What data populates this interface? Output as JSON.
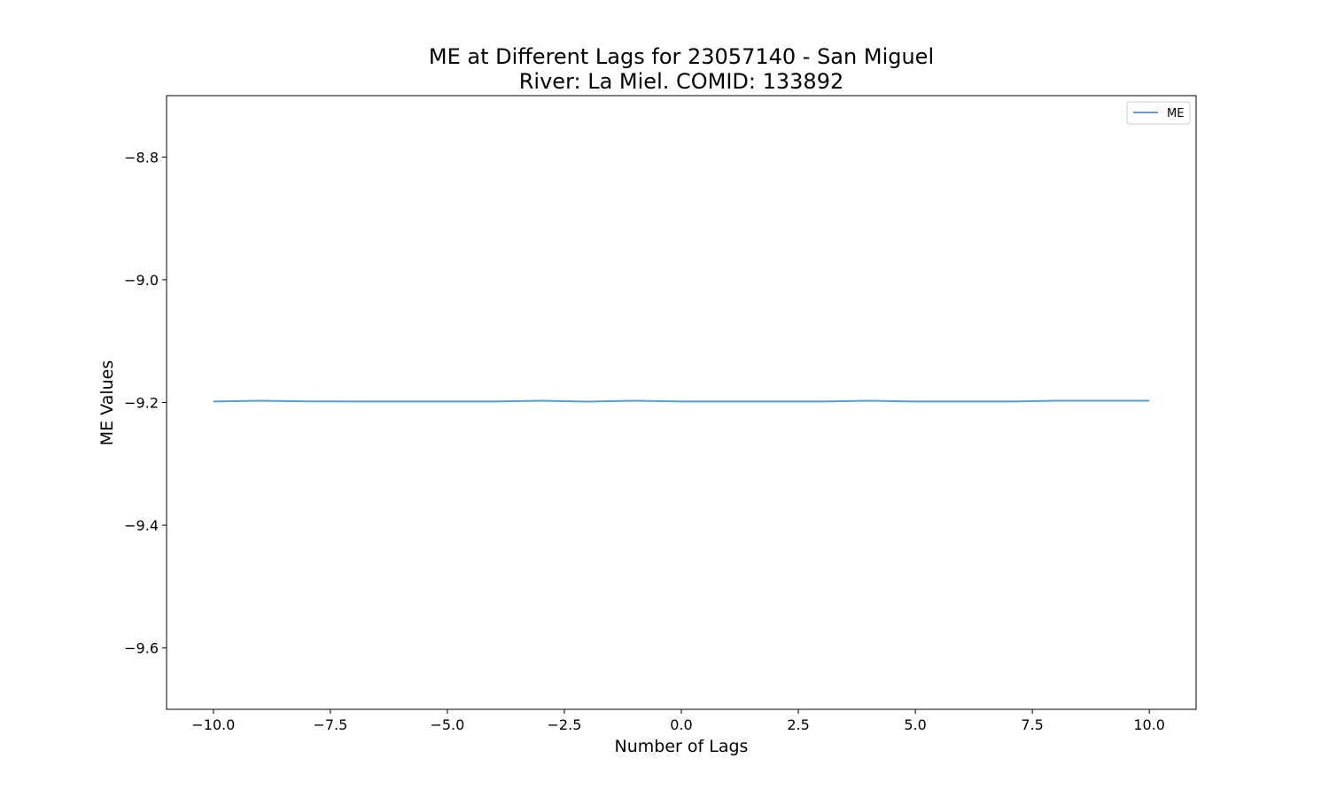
{
  "chart_data": {
    "type": "line",
    "title": [
      "ME at Different Lags for 23057140 - San Miguel",
      "River: La Miel. COMID: 133892"
    ],
    "xlabel": "Number of Lags",
    "ylabel": "ME Values",
    "xlim": [
      -11,
      11
    ],
    "ylim": [
      -9.7,
      -8.7
    ],
    "xticks": [
      -10.0,
      -7.5,
      -5.0,
      -2.5,
      0.0,
      2.5,
      5.0,
      7.5,
      10.0
    ],
    "xtick_labels": [
      "−10.0",
      "−7.5",
      "−5.0",
      "−2.5",
      "0.0",
      "2.5",
      "5.0",
      "7.5",
      "10.0"
    ],
    "yticks": [
      -9.6,
      -9.4,
      -9.2,
      -9.0,
      -8.8
    ],
    "ytick_labels": [
      "−9.6",
      "−9.4",
      "−9.2",
      "−9.0",
      "−8.8"
    ],
    "grid": false,
    "legend_position": "top-right",
    "series_color": "#5b9bd5",
    "x": [
      -10,
      -9,
      -8,
      -7,
      -6,
      -5,
      -4,
      -3,
      -2,
      -1,
      0,
      1,
      2,
      3,
      4,
      5,
      6,
      7,
      8,
      9,
      10
    ],
    "series": [
      {
        "name": "ME",
        "values": [
          -9.1984,
          -9.1971,
          -9.1982,
          -9.1983,
          -9.1983,
          -9.1983,
          -9.1983,
          -9.1971,
          -9.1985,
          -9.1971,
          -9.1984,
          -9.1984,
          -9.1984,
          -9.1984,
          -9.1971,
          -9.1984,
          -9.1984,
          -9.1984,
          -9.1972,
          -9.1972,
          -9.1972
        ]
      }
    ]
  }
}
